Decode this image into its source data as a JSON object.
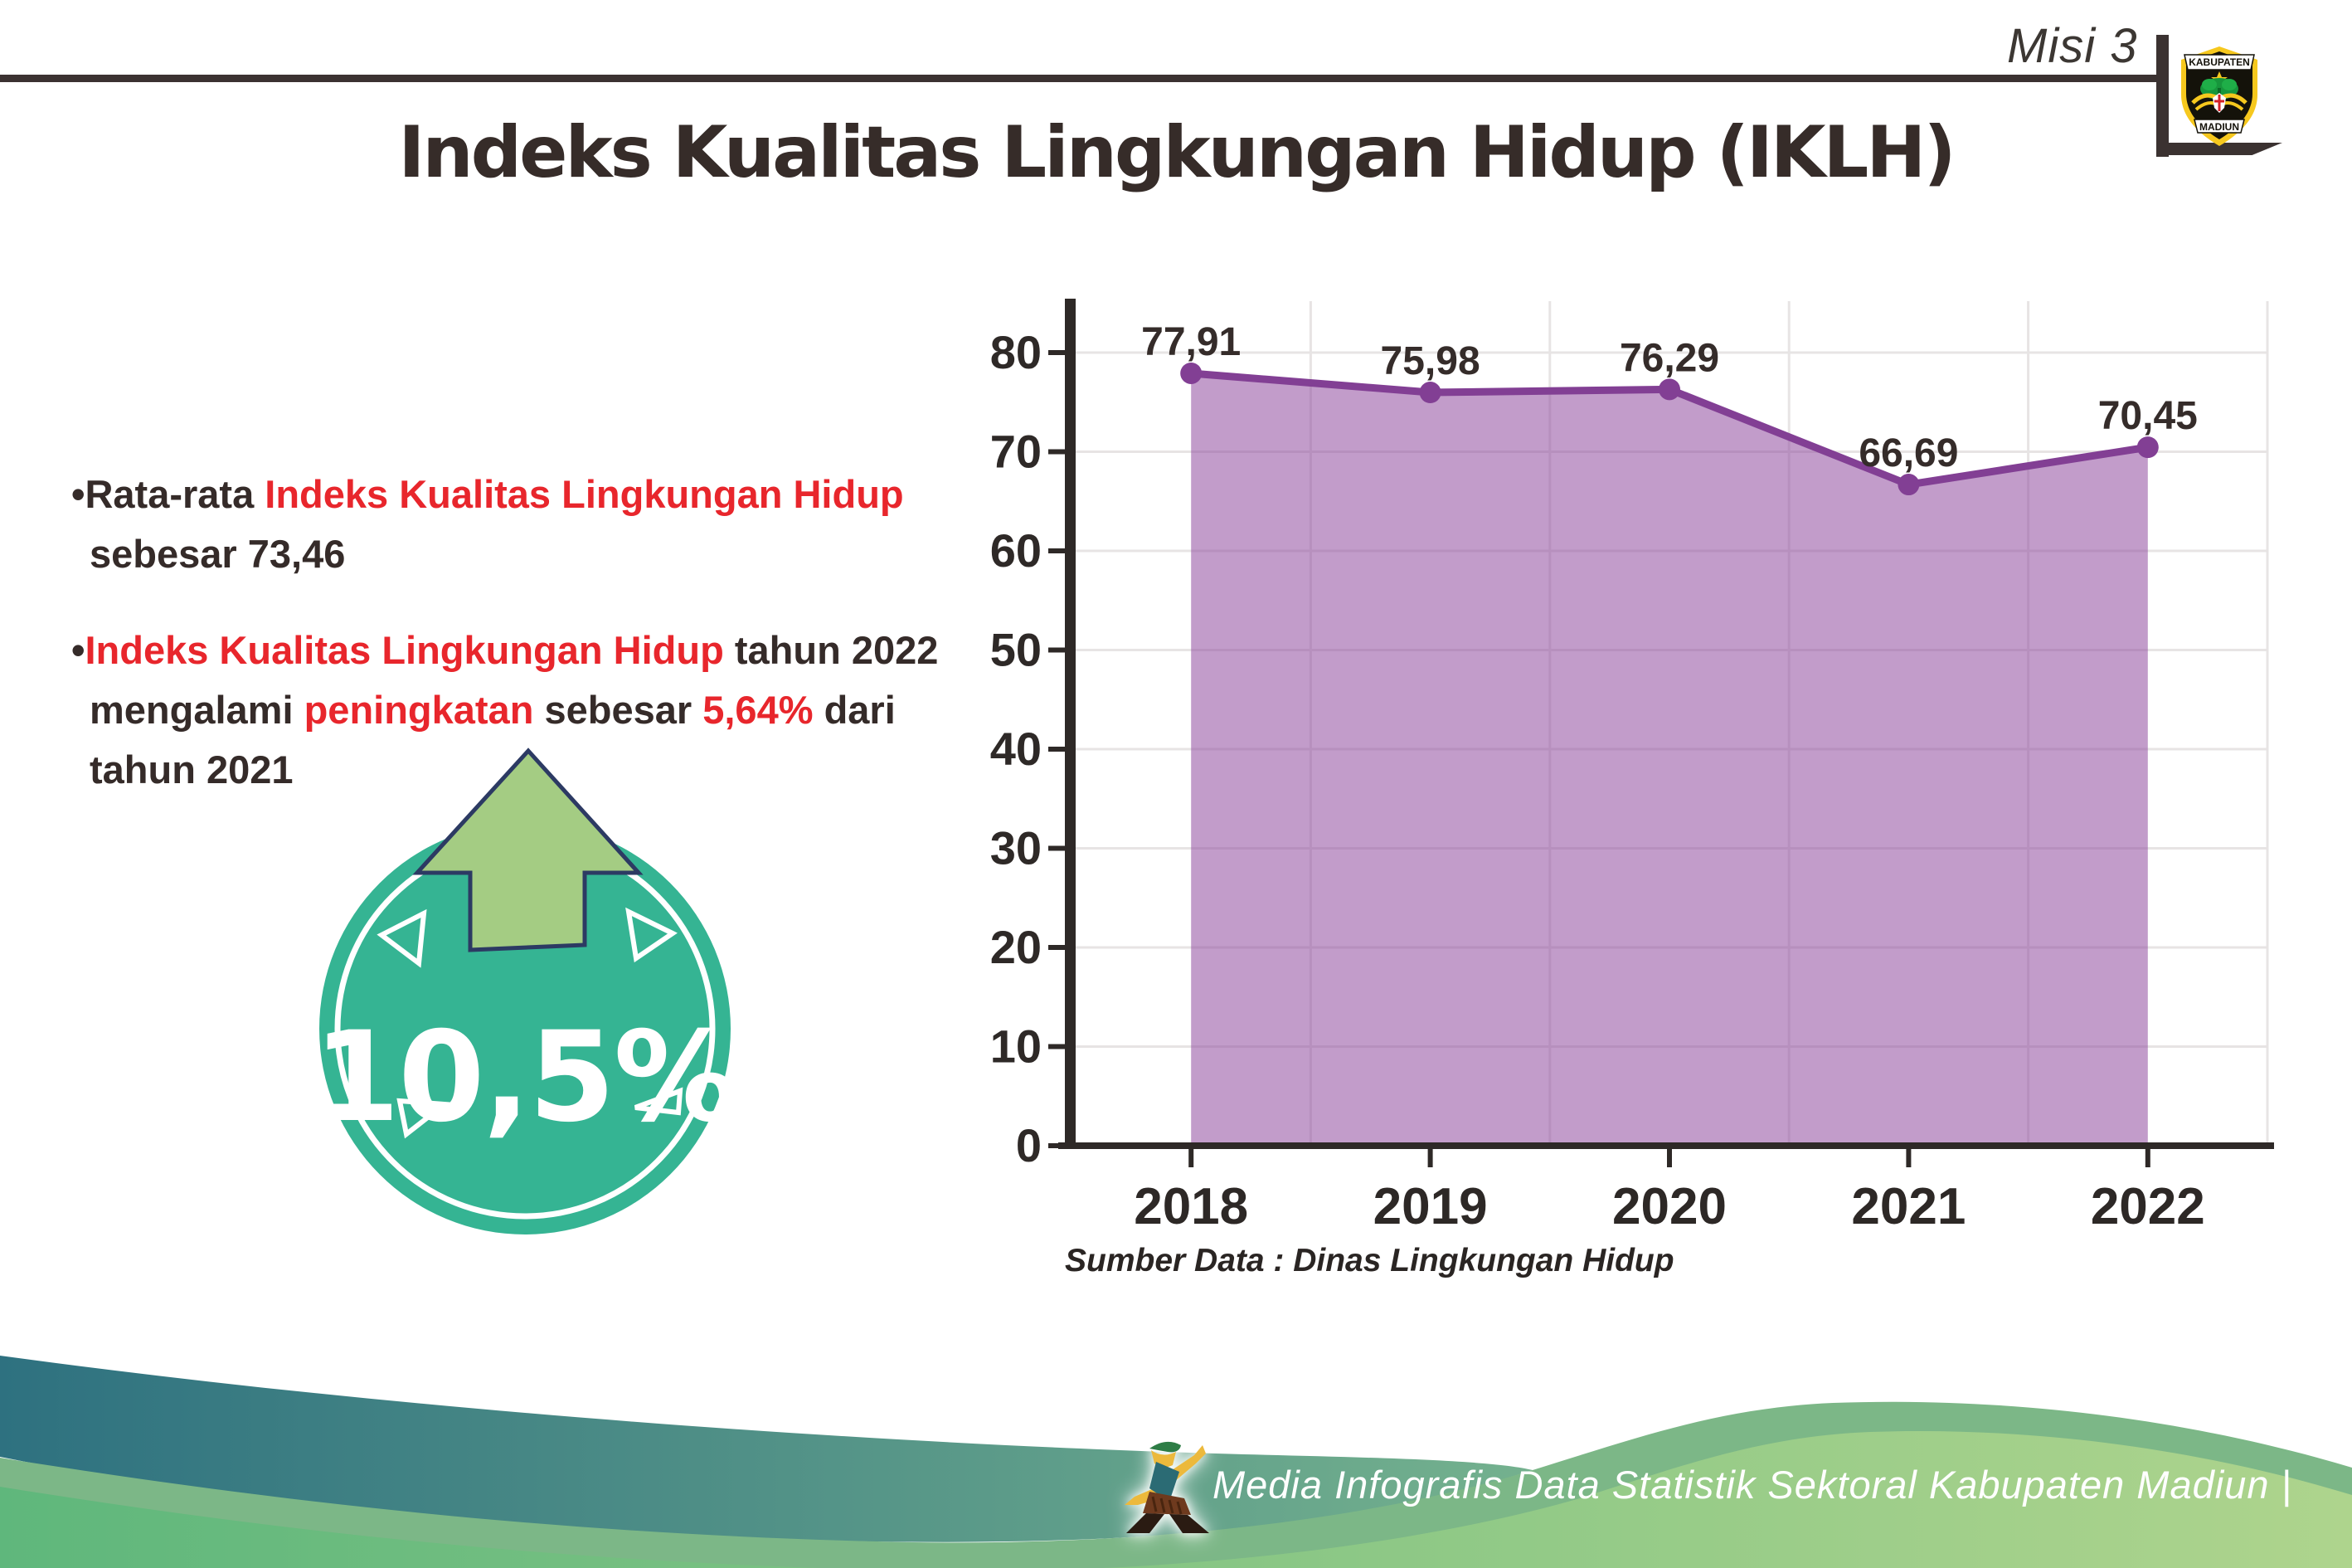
{
  "header": {
    "misi_label": "Misi 3",
    "title": "Indeks Kualitas Lingkungan Hidup (IKLH)",
    "logo_top": "KABUPATEN",
    "logo_bottom": "MADIUN"
  },
  "bullets": [
    {
      "parts": [
        {
          "t": "Rata-rata ",
          "c": "dark"
        },
        {
          "t": "Indeks Kualitas Lingkungan Hidup",
          "c": "red"
        },
        {
          "t": "\nsebesar 73,46",
          "c": "dark"
        }
      ]
    },
    {
      "parts": [
        {
          "t": "Indeks Kualitas Lingkungan Hidup",
          "c": "red"
        },
        {
          "t": " tahun 2022\nmengalami ",
          "c": "dark"
        },
        {
          "t": "peningkatan",
          "c": "red"
        },
        {
          "t": " sebesar ",
          "c": "dark"
        },
        {
          "t": "5,64%",
          "c": "red"
        },
        {
          "t": " dari\ntahun 2021",
          "c": "dark"
        }
      ]
    }
  ],
  "badge": {
    "value": "10,5%",
    "circle_color": "#35b493",
    "arrow_color": "#a4cc83",
    "arrow_outline": "#2c3a63"
  },
  "chart_data": {
    "type": "area",
    "title": "",
    "xlabel": "",
    "ylabel": "",
    "categories": [
      "2018",
      "2019",
      "2020",
      "2021",
      "2022"
    ],
    "values": [
      77.91,
      75.98,
      76.29,
      66.69,
      70.45
    ],
    "point_labels": [
      "77,91",
      "75,98",
      "76,29",
      "66,69",
      "70,45"
    ],
    "yticks": [
      0,
      10,
      20,
      30,
      40,
      50,
      60,
      70,
      80
    ],
    "ylim": [
      0,
      80
    ],
    "grid": "on",
    "legend": "none",
    "line_color": "#823f94",
    "fill_color": "#8f4b9e",
    "source": "Sumber Data : Dinas Lingkungan Hidup"
  },
  "footer": {
    "credit": "Media Infografis Data Statistik Sektoral Kabupaten Madiun |"
  }
}
